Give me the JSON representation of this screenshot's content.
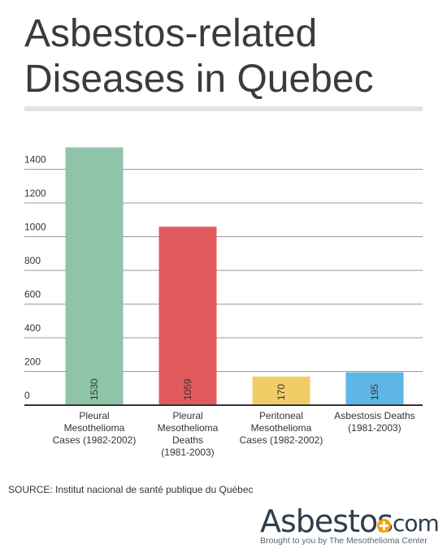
{
  "title_lines": [
    "Asbestos-related",
    "Diseases in Quebec"
  ],
  "source": "SOURCE: Institut nacional de santé publique du Québec",
  "logo": {
    "word": "Asbestos",
    "tld": "com",
    "tagline": "Brought to you by The Mesothelioma Center",
    "accent": "#f0a30a"
  },
  "chart_data": {
    "type": "bar",
    "categories": [
      [
        "Pleural",
        "Mesothelioma",
        "Cases (1982-2002)"
      ],
      [
        "Pleural",
        "Mesothelioma",
        "Deaths",
        "(1981-2003)"
      ],
      [
        "Peritoneal",
        "Mesothelioma",
        "Cases (1982-2002)"
      ],
      [
        "Asbestosis Deaths",
        "(1981-2003)"
      ]
    ],
    "values": [
      1530,
      1059,
      170,
      195
    ],
    "value_labels": [
      "1530",
      "1059",
      "170",
      "195"
    ],
    "colors": [
      "#8fc4a9",
      "#e05a5d",
      "#f2cd67",
      "#5db6e6"
    ],
    "yticks": [
      0,
      200,
      400,
      600,
      800,
      1000,
      1200,
      1400
    ],
    "ylim": [
      0,
      1500
    ],
    "grid": true
  }
}
